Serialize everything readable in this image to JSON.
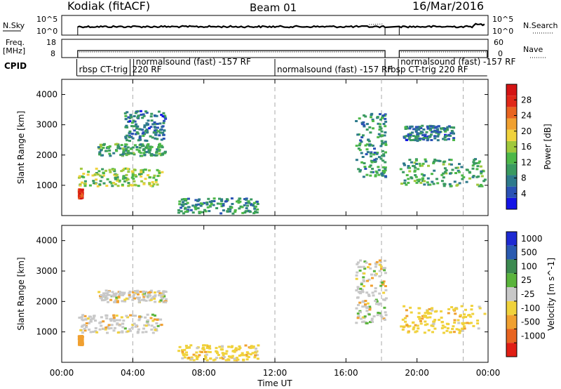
{
  "header": {
    "radar": "Kodiak (fitACF)",
    "beam": "Beam 01",
    "date": "16/Mar/2016"
  },
  "strip_labels": {
    "nsky": "N.Sky",
    "nsearch": "N.Search",
    "freq": "Freq.",
    "freq_unit": "[MHz]",
    "nave": "Nave",
    "cpid": "CPID"
  },
  "noise_ticks_left": [
    "10^5",
    "10^0"
  ],
  "noise_ticks_right": [
    "10^5",
    "10^0"
  ],
  "freq_ticks": [
    "18",
    "8"
  ],
  "nave_ticks": [
    "60",
    "0"
  ],
  "cpid_segments": [
    {
      "label": "rbsp CT-trig",
      "start": 0.85
    },
    {
      "label": "220 RF",
      "start": 3.85
    },
    {
      "label": "normalsound (fast) -157 RF",
      "start": 4.05
    },
    {
      "label": "normalsound (fast) -157 RF",
      "start": 12.0
    },
    {
      "label": "rbsp CT-trig 220 RF",
      "start": 18.2
    },
    {
      "label": "normalsound (fast) -157 RF",
      "start": 18.95
    }
  ],
  "chart_data": [
    {
      "type": "heatmap",
      "panel": "power",
      "xlabel": "",
      "ylabel": "Slant Range [km]",
      "xlim": [
        0,
        24
      ],
      "ylim": [
        0,
        4500
      ],
      "yticks": [
        "1000",
        "2000",
        "3000",
        "4000"
      ],
      "colorbar": {
        "label": "Power [dB]",
        "ticks": [
          "4",
          "8",
          "12",
          "16",
          "20",
          "24",
          "28"
        ],
        "colors": [
          "#1414e6",
          "#2a52b5",
          "#2e7a8c",
          "#3a9a60",
          "#4db848",
          "#a0c83c",
          "#f0d23c",
          "#f0a030",
          "#e86420",
          "#e02818",
          "#d41414"
        ]
      },
      "echo_regions": [
        {
          "x": [
            0.9,
            1.1
          ],
          "range": [
            600,
            900
          ],
          "power": 28
        },
        {
          "x": [
            0.9,
            5.6
          ],
          "range": [
            1000,
            1600
          ],
          "power": 16
        },
        {
          "x": [
            2.0,
            5.8
          ],
          "range": [
            2000,
            2400
          ],
          "power": 12
        },
        {
          "x": [
            3.5,
            5.8
          ],
          "range": [
            2500,
            3500
          ],
          "power": 8
        },
        {
          "x": [
            6.5,
            11.0
          ],
          "range": [
            100,
            600
          ],
          "power": 10
        },
        {
          "x": [
            16.5,
            18.2
          ],
          "range": [
            1300,
            3400
          ],
          "power": 10
        },
        {
          "x": [
            19.0,
            23.8
          ],
          "range": [
            1000,
            1900
          ],
          "power": 12
        },
        {
          "x": [
            19.2,
            22.0
          ],
          "range": [
            2500,
            3000
          ],
          "power": 8
        }
      ]
    },
    {
      "type": "heatmap",
      "panel": "velocity",
      "xlabel": "Time UT",
      "ylabel": "Slant Range [km]",
      "xlim": [
        0,
        24
      ],
      "ylim": [
        0,
        4500
      ],
      "xticks": [
        "00:00",
        "04:00",
        "08:00",
        "12:00",
        "16:00",
        "20:00",
        "00:00"
      ],
      "yticks": [
        "1000",
        "2000",
        "3000",
        "4000"
      ],
      "colorbar": {
        "label": "Velocity [m s^-1]",
        "ticks": [
          "1000",
          "500",
          "100",
          "25",
          "-25",
          "-100",
          "-500",
          "-1000"
        ],
        "colors": [
          "#1e2ad2",
          "#2a5ab0",
          "#3c8a50",
          "#5ab43c",
          "#c8c8c8",
          "#f0d23c",
          "#f0a030",
          "#e86420",
          "#e01e14"
        ]
      },
      "echo_regions": [
        {
          "x": [
            0.9,
            1.1
          ],
          "range": [
            600,
            900
          ],
          "velocity": -200
        },
        {
          "x": [
            0.9,
            5.6
          ],
          "range": [
            1000,
            1600
          ],
          "velocity": 0
        },
        {
          "x": [
            2.0,
            5.8
          ],
          "range": [
            2000,
            2400
          ],
          "velocity": 0
        },
        {
          "x": [
            6.5,
            11.0
          ],
          "range": [
            100,
            600
          ],
          "velocity": -50
        },
        {
          "x": [
            16.5,
            18.2
          ],
          "range": [
            1300,
            3400
          ],
          "velocity": 0
        },
        {
          "x": [
            19.0,
            23.8
          ],
          "range": [
            1000,
            1900
          ],
          "velocity": -50
        }
      ]
    }
  ]
}
